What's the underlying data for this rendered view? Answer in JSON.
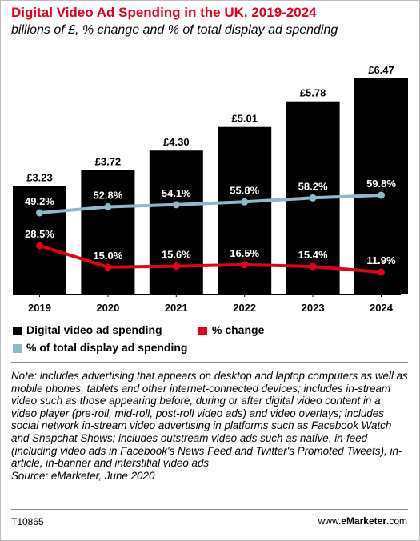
{
  "title": "Digital Video Ad Spending in the UK, 2019-2024",
  "subtitle": "billions of £, % change and % of total display ad spending",
  "legend": {
    "spending": "Digital video ad spending",
    "change": "% change",
    "share": "% of total display ad spending"
  },
  "note": "Note: includes advertising that appears on desktop and laptop computers as well as mobile phones, tablets and other internet-connected devices; includes in-stream video such as those appearing before, during or after digital video content in a video player (pre-roll, mid-roll, post-roll video ads) and video overlays; includes social network in-stream video advertising in platforms such as Facebook Watch and Snapchat Shows; includes outstream video ads such as native, in-feed (including video ads in Facebook's News Feed and Twitter's Promoted Tweets), in-article, in-banner and interstitial video ads",
  "source": "Source: eMarketer, June 2020",
  "chart_id": "T10865",
  "site": {
    "prefix": "www.",
    "brand": "eMarketer",
    "suffix": ".com"
  },
  "colors": {
    "title": "#e3001b",
    "bars": "#000000",
    "change": "#e3001b",
    "share": "#8fb8c9"
  },
  "chart_data": {
    "type": "bar",
    "categories": [
      "2019",
      "2020",
      "2021",
      "2022",
      "2023",
      "2024"
    ],
    "series": [
      {
        "name": "Digital video ad spending",
        "type": "bar",
        "values": [
          3.23,
          3.72,
          4.3,
          5.01,
          5.78,
          6.47
        ],
        "labels": [
          "£3.23",
          "£3.72",
          "£4.30",
          "£5.01",
          "£5.78",
          "£6.47"
        ]
      },
      {
        "name": "% change",
        "type": "line",
        "values": [
          28.5,
          15.0,
          15.6,
          16.5,
          15.4,
          11.9
        ],
        "labels": [
          "28.5%",
          "15.0%",
          "15.6%",
          "16.5%",
          "15.4%",
          "11.9%"
        ]
      },
      {
        "name": "% of total display ad spending",
        "type": "line",
        "values": [
          49.2,
          52.8,
          54.1,
          55.8,
          58.2,
          59.8
        ],
        "labels": [
          "49.2%",
          "52.8%",
          "54.1%",
          "55.8%",
          "58.2%",
          "59.8%"
        ]
      }
    ],
    "ylim": [
      0,
      7
    ],
    "grid": false,
    "legend_position": "bottom"
  }
}
